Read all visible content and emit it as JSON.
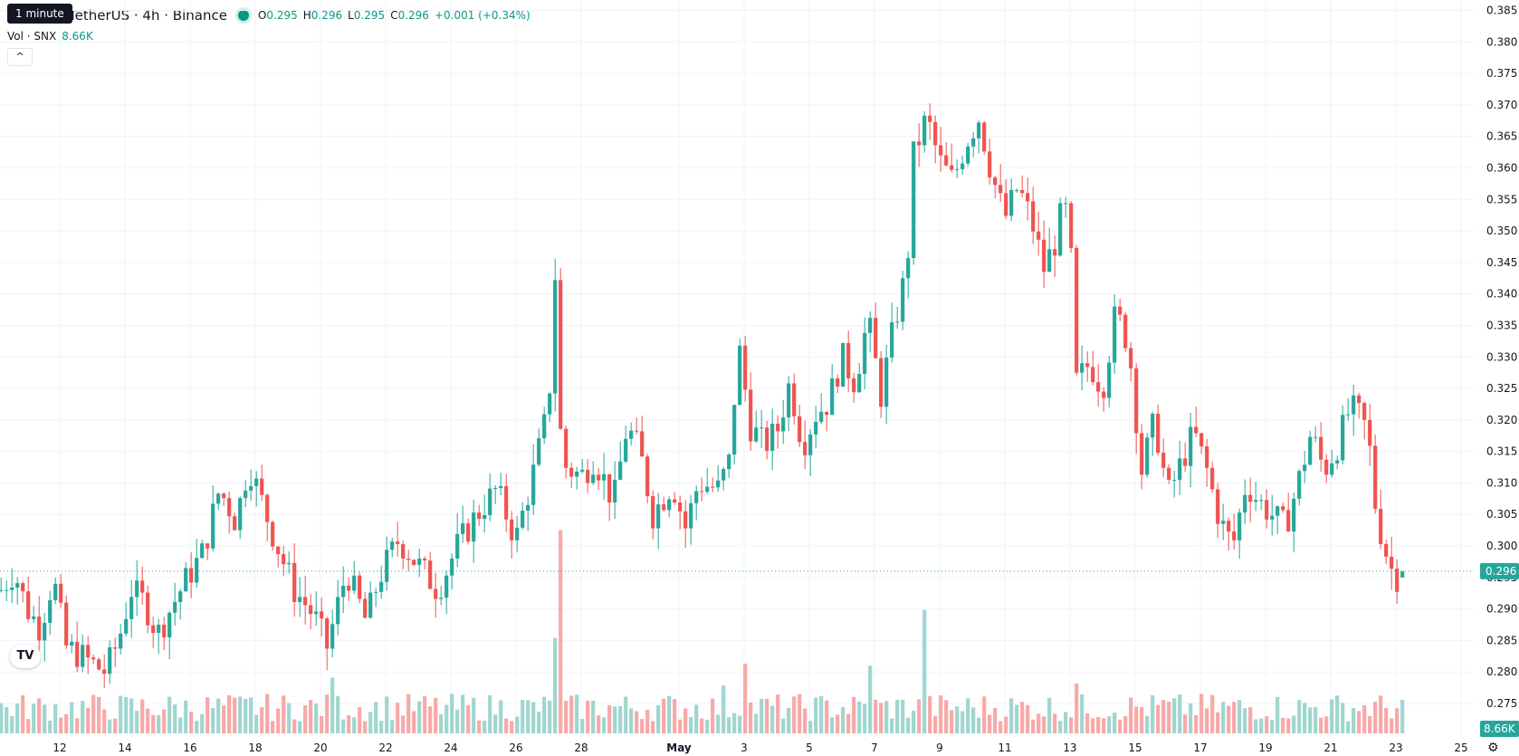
{
  "header": {
    "tooltip": "1 minute",
    "symbol_title": "TetherUS · 4h · Binance",
    "ohlc": {
      "o_label": "O",
      "o": "0.295",
      "h_label": "H",
      "h": "0.296",
      "l_label": "L",
      "l": "0.295",
      "c_label": "C",
      "c": "0.296",
      "change": "+0.001 (+0.34%)"
    },
    "volume_label": "Vol · SNX",
    "volume_value": "8.66K",
    "collapse_glyph": "^"
  },
  "logo_text": "TV",
  "settings_icon": "gear-icon",
  "colors": {
    "up": "#26a69a",
    "down": "#ef5350",
    "up_vol": "#9fd6cf",
    "down_vol": "#f7a9a7",
    "accent": "#089981"
  },
  "chart_data": {
    "type": "candlestick",
    "ylim": [
      0.2695,
      0.3865
    ],
    "y_ticks": [
      "0.275",
      "0.280",
      "0.285",
      "0.290",
      "0.295",
      "0.300",
      "0.305",
      "0.310",
      "0.315",
      "0.320",
      "0.325",
      "0.330",
      "0.335",
      "0.340",
      "0.345",
      "0.350",
      "0.355",
      "0.360",
      "0.365",
      "0.370",
      "0.375",
      "0.380",
      "0.385"
    ],
    "x_ticks": [
      "12",
      "14",
      "16",
      "18",
      "20",
      "22",
      "24",
      "26",
      "28",
      "May",
      "3",
      "5",
      "7",
      "9",
      "11",
      "13",
      "15",
      "17",
      "19",
      "21",
      "23",
      "25"
    ],
    "x_tick_day_index": [
      0,
      2,
      4,
      6,
      8,
      10,
      12,
      14,
      16,
      19,
      21,
      23,
      25,
      27,
      29,
      31,
      33,
      35,
      37,
      39,
      41,
      43
    ],
    "bar_interval_hours": 4,
    "last_price_label": "0.296",
    "last_volume_label": "8.66K",
    "anchor_closes": [
      {
        "d": -1.8,
        "c": 0.293
      },
      {
        "d": -1.4,
        "c": 0.296
      },
      {
        "d": -1.0,
        "c": 0.29
      },
      {
        "d": -0.6,
        "c": 0.287
      },
      {
        "d": -0.2,
        "c": 0.295
      },
      {
        "d": 0.2,
        "c": 0.284
      },
      {
        "d": 0.8,
        "c": 0.282
      },
      {
        "d": 1.4,
        "c": 0.28
      },
      {
        "d": 1.8,
        "c": 0.285
      },
      {
        "d": 2.2,
        "c": 0.293
      },
      {
        "d": 2.6,
        "c": 0.291
      },
      {
        "d": 3.0,
        "c": 0.286
      },
      {
        "d": 3.4,
        "c": 0.29
      },
      {
        "d": 3.8,
        "c": 0.294
      },
      {
        "d": 4.4,
        "c": 0.299
      },
      {
        "d": 4.9,
        "c": 0.309
      },
      {
        "d": 5.4,
        "c": 0.304
      },
      {
        "d": 5.8,
        "c": 0.313
      },
      {
        "d": 6.2,
        "c": 0.307
      },
      {
        "d": 6.6,
        "c": 0.301
      },
      {
        "d": 7.2,
        "c": 0.293
      },
      {
        "d": 7.8,
        "c": 0.289
      },
      {
        "d": 8.2,
        "c": 0.284
      },
      {
        "d": 8.8,
        "c": 0.296
      },
      {
        "d": 9.4,
        "c": 0.288
      },
      {
        "d": 9.8,
        "c": 0.295
      },
      {
        "d": 10.4,
        "c": 0.301
      },
      {
        "d": 11.0,
        "c": 0.297
      },
      {
        "d": 11.6,
        "c": 0.293
      },
      {
        "d": 12.2,
        "c": 0.3
      },
      {
        "d": 12.8,
        "c": 0.305
      },
      {
        "d": 13.4,
        "c": 0.309
      },
      {
        "d": 14.0,
        "c": 0.301
      },
      {
        "d": 14.6,
        "c": 0.313
      },
      {
        "d": 15.0,
        "c": 0.322
      },
      {
        "d": 15.2,
        "c": 0.343
      },
      {
        "d": 15.4,
        "c": 0.313
      },
      {
        "d": 16.0,
        "c": 0.311
      },
      {
        "d": 16.4,
        "c": 0.314
      },
      {
        "d": 17.0,
        "c": 0.307
      },
      {
        "d": 17.4,
        "c": 0.319
      },
      {
        "d": 17.8,
        "c": 0.315
      },
      {
        "d": 18.2,
        "c": 0.305
      },
      {
        "d": 18.8,
        "c": 0.31
      },
      {
        "d": 19.2,
        "c": 0.303
      },
      {
        "d": 19.6,
        "c": 0.31
      },
      {
        "d": 20.2,
        "c": 0.309
      },
      {
        "d": 20.6,
        "c": 0.314
      },
      {
        "d": 20.8,
        "c": 0.333
      },
      {
        "d": 21.2,
        "c": 0.319
      },
      {
        "d": 21.6,
        "c": 0.316
      },
      {
        "d": 22.0,
        "c": 0.318
      },
      {
        "d": 22.4,
        "c": 0.326
      },
      {
        "d": 22.8,
        "c": 0.316
      },
      {
        "d": 23.2,
        "c": 0.321
      },
      {
        "d": 23.6,
        "c": 0.323
      },
      {
        "d": 24.0,
        "c": 0.33
      },
      {
        "d": 24.4,
        "c": 0.326
      },
      {
        "d": 24.8,
        "c": 0.336
      },
      {
        "d": 25.2,
        "c": 0.324
      },
      {
        "d": 25.6,
        "c": 0.335
      },
      {
        "d": 26.0,
        "c": 0.344
      },
      {
        "d": 26.2,
        "c": 0.362
      },
      {
        "d": 26.6,
        "c": 0.368
      },
      {
        "d": 27.0,
        "c": 0.361
      },
      {
        "d": 27.4,
        "c": 0.358
      },
      {
        "d": 27.8,
        "c": 0.364
      },
      {
        "d": 28.2,
        "c": 0.368
      },
      {
        "d": 28.6,
        "c": 0.359
      },
      {
        "d": 29.0,
        "c": 0.352
      },
      {
        "d": 29.4,
        "c": 0.357
      },
      {
        "d": 29.8,
        "c": 0.352
      },
      {
        "d": 30.2,
        "c": 0.344
      },
      {
        "d": 30.6,
        "c": 0.349
      },
      {
        "d": 30.8,
        "c": 0.355
      },
      {
        "d": 31.0,
        "c": 0.349
      },
      {
        "d": 31.2,
        "c": 0.326
      },
      {
        "d": 31.6,
        "c": 0.329
      },
      {
        "d": 32.0,
        "c": 0.325
      },
      {
        "d": 32.4,
        "c": 0.337
      },
      {
        "d": 32.8,
        "c": 0.332
      },
      {
        "d": 33.2,
        "c": 0.312
      },
      {
        "d": 33.6,
        "c": 0.32
      },
      {
        "d": 34.0,
        "c": 0.308
      },
      {
        "d": 34.4,
        "c": 0.313
      },
      {
        "d": 34.8,
        "c": 0.318
      },
      {
        "d": 35.2,
        "c": 0.312
      },
      {
        "d": 35.6,
        "c": 0.304
      },
      {
        "d": 36.0,
        "c": 0.3
      },
      {
        "d": 36.4,
        "c": 0.31
      },
      {
        "d": 36.8,
        "c": 0.307
      },
      {
        "d": 37.2,
        "c": 0.305
      },
      {
        "d": 37.6,
        "c": 0.303
      },
      {
        "d": 38.0,
        "c": 0.31
      },
      {
        "d": 38.4,
        "c": 0.318
      },
      {
        "d": 38.8,
        "c": 0.312
      },
      {
        "d": 39.2,
        "c": 0.316
      },
      {
        "d": 39.6,
        "c": 0.322
      },
      {
        "d": 40.0,
        "c": 0.32
      },
      {
        "d": 40.2,
        "c": 0.315
      },
      {
        "d": 40.4,
        "c": 0.305
      },
      {
        "d": 40.6,
        "c": 0.301
      },
      {
        "d": 40.8,
        "c": 0.297
      },
      {
        "d": 41.0,
        "c": 0.295
      },
      {
        "d": 41.2,
        "c": 0.296
      }
    ],
    "volume_spikes": [
      {
        "d": 15.4,
        "k": 10.2
      },
      {
        "d": 15.2,
        "k": 4.8
      },
      {
        "d": 26.6,
        "k": 6.2
      },
      {
        "d": 21.0,
        "k": 3.5
      },
      {
        "d": 24.8,
        "k": 3.4
      },
      {
        "d": 31.2,
        "k": 2.5
      },
      {
        "d": 8.4,
        "k": 2.8
      },
      {
        "d": 5.8,
        "k": 1.8
      },
      {
        "d": 20.4,
        "k": 2.4
      }
    ]
  }
}
